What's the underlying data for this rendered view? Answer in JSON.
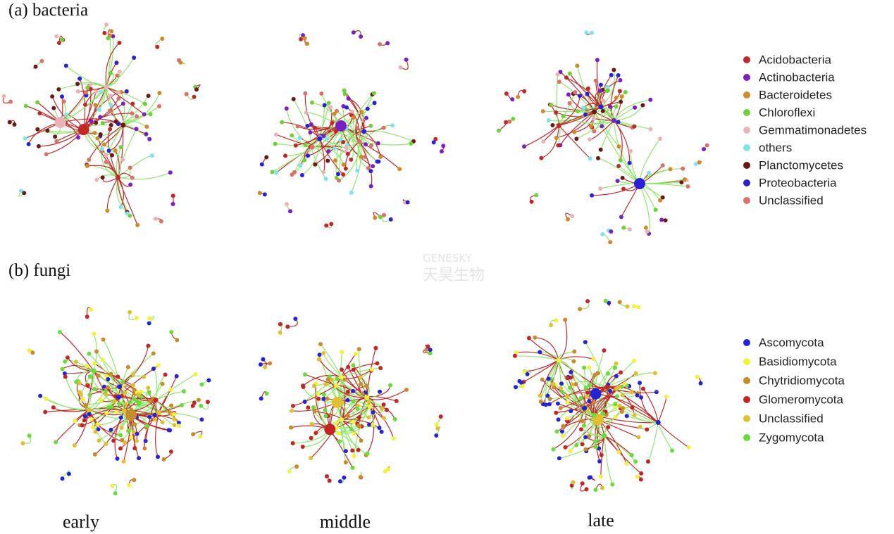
{
  "panels": [
    {
      "label": "(a) bacteria",
      "legend": [
        {
          "name": "Acidobacteria",
          "color": "#c0282a"
        },
        {
          "name": "Actinobacteria",
          "color": "#7a1fc4"
        },
        {
          "name": "Bacteroidetes",
          "color": "#d08a2a"
        },
        {
          "name": "Chloroflexi",
          "color": "#6fd13a"
        },
        {
          "name": "Gemmatimonadetes",
          "color": "#e8b4b8"
        },
        {
          "name": "others",
          "color": "#7fe3ea"
        },
        {
          "name": "Planctomycetes",
          "color": "#6a1a16"
        },
        {
          "name": "Proteobacteria",
          "color": "#2a20d8"
        },
        {
          "name": "Unclassified",
          "color": "#d9736a"
        }
      ]
    },
    {
      "label": "(b) fungi",
      "legend": [
        {
          "name": "Ascomycota",
          "color": "#2424d6"
        },
        {
          "name": "Basidiomycota",
          "color": "#f2f23a"
        },
        {
          "name": "Chytridiomycota",
          "color": "#c98a2a"
        },
        {
          "name": "Glomeromycota",
          "color": "#c42424"
        },
        {
          "name": "Unclassified",
          "color": "#e0c030"
        },
        {
          "name": "Zygomycota",
          "color": "#66dd3a"
        }
      ]
    }
  ],
  "columns": [
    "early",
    "middle",
    "late"
  ],
  "watermark": {
    "brand": "GENESKY",
    "name": "天昊生物"
  }
}
